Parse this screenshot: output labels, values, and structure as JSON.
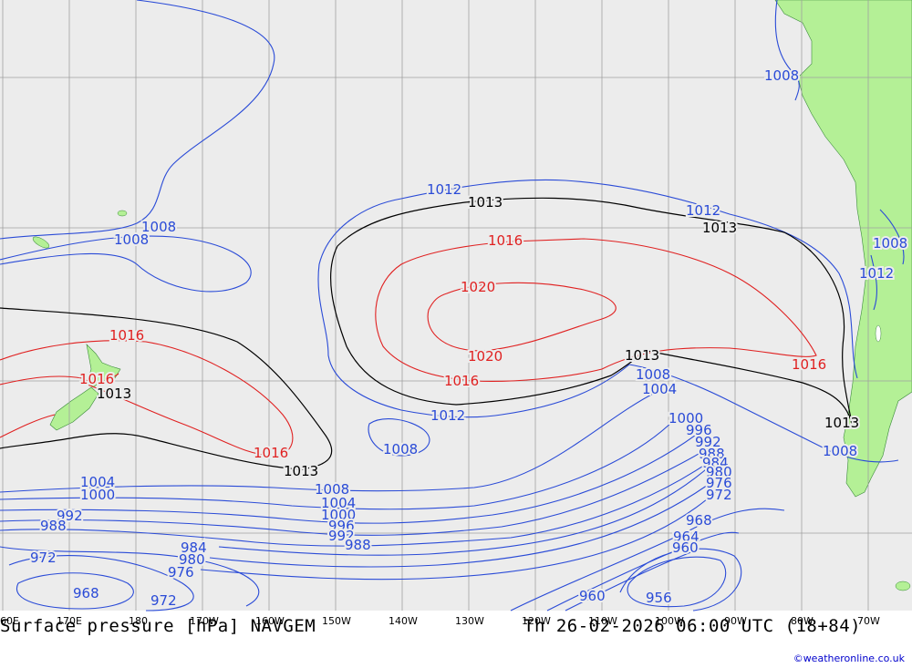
{
  "title": "Surface pressure [hPa] NAVGEM",
  "valid_time": "Th 26-02-2026 06:00 UTC (18+84)",
  "credit": "©weatheronline.co.uk",
  "colors": {
    "ocean": "#ececec",
    "land": "#b4f096",
    "grid": "#a0a0a0",
    "isobar_low": "#2a4bd7",
    "isobar_mid": "#000000",
    "isobar_high": "#e02020"
  },
  "lon_ticks": [
    "60E",
    "170E",
    "180",
    "170W",
    "160W",
    "150W",
    "140W",
    "130W",
    "120W",
    "110W",
    "100W",
    "90W",
    "80W",
    "70W"
  ],
  "isobar_labels": {
    "i1008_ne": "1008",
    "i1008_w1": "1008",
    "i1008_w2": "1008",
    "i1012_top": "1012",
    "i1013_top": "1013",
    "i1012_tr": "1012",
    "i1013_tr": "1013",
    "i1008_e": "1008",
    "i1012_e": "1012",
    "i1016_top": "1016",
    "i1020_top": "1020",
    "i1020_bot": "1020",
    "i1016_bot": "1016",
    "i1013_mid": "1013",
    "i1008_mid": "1008",
    "i1004_mid": "1004",
    "i1016_e": "1016",
    "i1013_e": "1013",
    "i1008_se": "1008",
    "i1016_nz": "1016",
    "i1016_nz2": "1016",
    "i1013_nz": "1013",
    "i1016_sw": "1016",
    "i1013_sw": "1013",
    "i1012_c": "1012",
    "i1008_c": "1008",
    "i1000_e": "1000",
    "i996_e": "996",
    "i992_e": "992",
    "i988_e": "988",
    "i984_e": "984",
    "i980_e": "980",
    "i976_e": "976",
    "i972_e": "972",
    "i1004_w": "1004",
    "i1000_w": "1000",
    "i992_w": "992",
    "i988_w": "988",
    "i1008_s": "1008",
    "i1004_s": "1004",
    "i1000_s": "1000",
    "i996_s": "996",
    "i992_s": "992",
    "i988_s": "988",
    "i984_s": "984",
    "i980_s": "980",
    "i976_s": "976",
    "i972_sw": "972",
    "i968_sw": "968",
    "i972_s2": "972",
    "i968_se": "968",
    "i964_se": "964",
    "i960_se": "960",
    "i960_s": "960",
    "i956_s": "956"
  }
}
